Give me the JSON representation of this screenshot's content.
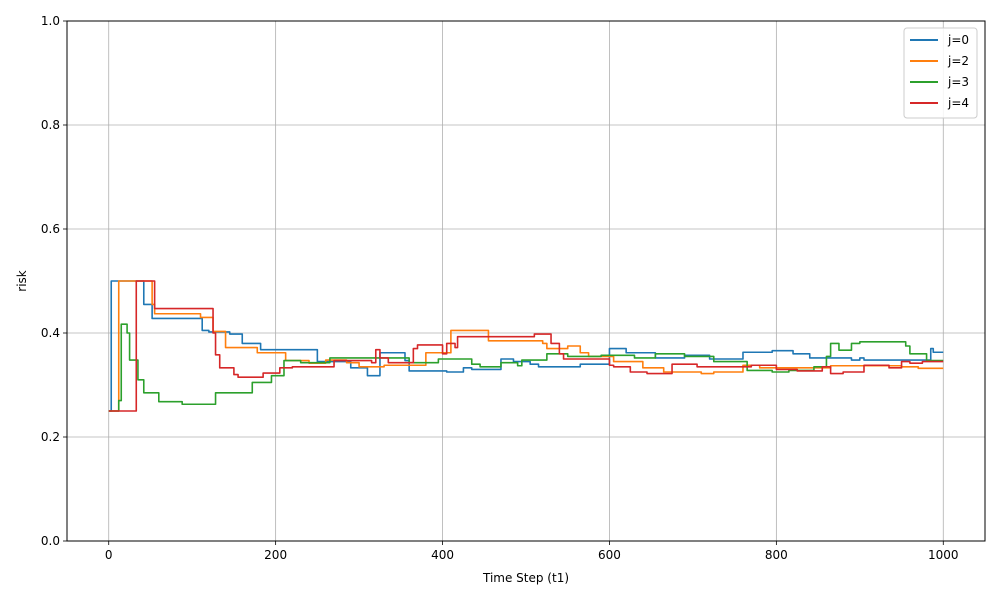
{
  "chart_data": {
    "type": "line",
    "xlabel": "Time Step (t1)",
    "ylabel": "risk",
    "xlim": [
      -50,
      1050
    ],
    "ylim": [
      0.0,
      1.0
    ],
    "xticks": [
      0,
      200,
      400,
      600,
      800,
      1000
    ],
    "yticks": [
      0.0,
      0.2,
      0.4,
      0.6,
      0.8,
      1.0
    ],
    "xtick_labels": [
      "0",
      "200",
      "400",
      "600",
      "800",
      "1000"
    ],
    "ytick_labels": [
      "0.0",
      "0.2",
      "0.4",
      "0.6",
      "0.8",
      "1.0"
    ],
    "grid": true,
    "legend_position": "top-right",
    "series": [
      {
        "name": "j=0",
        "color": "#1f77b4",
        "points": [
          [
            0,
            0.25
          ],
          [
            3,
            0.25
          ],
          [
            3,
            0.5
          ],
          [
            42,
            0.5
          ],
          [
            42,
            0.455
          ],
          [
            52,
            0.455
          ],
          [
            52,
            0.428
          ],
          [
            112,
            0.428
          ],
          [
            112,
            0.405
          ],
          [
            120,
            0.405
          ],
          [
            120,
            0.402
          ],
          [
            145,
            0.402
          ],
          [
            145,
            0.398
          ],
          [
            160,
            0.398
          ],
          [
            160,
            0.38
          ],
          [
            182,
            0.38
          ],
          [
            182,
            0.368
          ],
          [
            250,
            0.368
          ],
          [
            250,
            0.345
          ],
          [
            290,
            0.345
          ],
          [
            290,
            0.333
          ],
          [
            310,
            0.333
          ],
          [
            310,
            0.318
          ],
          [
            325,
            0.318
          ],
          [
            325,
            0.362
          ],
          [
            355,
            0.362
          ],
          [
            355,
            0.347
          ],
          [
            360,
            0.347
          ],
          [
            360,
            0.327
          ],
          [
            405,
            0.327
          ],
          [
            405,
            0.325
          ],
          [
            425,
            0.325
          ],
          [
            425,
            0.333
          ],
          [
            435,
            0.333
          ],
          [
            435,
            0.33
          ],
          [
            470,
            0.33
          ],
          [
            470,
            0.35
          ],
          [
            485,
            0.35
          ],
          [
            485,
            0.345
          ],
          [
            505,
            0.345
          ],
          [
            505,
            0.34
          ],
          [
            515,
            0.34
          ],
          [
            515,
            0.335
          ],
          [
            565,
            0.335
          ],
          [
            565,
            0.34
          ],
          [
            600,
            0.34
          ],
          [
            600,
            0.37
          ],
          [
            620,
            0.37
          ],
          [
            620,
            0.362
          ],
          [
            655,
            0.362
          ],
          [
            655,
            0.352
          ],
          [
            690,
            0.352
          ],
          [
            690,
            0.357
          ],
          [
            720,
            0.357
          ],
          [
            720,
            0.35
          ],
          [
            760,
            0.35
          ],
          [
            760,
            0.363
          ],
          [
            795,
            0.363
          ],
          [
            795,
            0.366
          ],
          [
            820,
            0.366
          ],
          [
            820,
            0.36
          ],
          [
            840,
            0.36
          ],
          [
            840,
            0.352
          ],
          [
            890,
            0.352
          ],
          [
            890,
            0.348
          ],
          [
            900,
            0.348
          ],
          [
            900,
            0.352
          ],
          [
            905,
            0.352
          ],
          [
            905,
            0.348
          ],
          [
            985,
            0.348
          ],
          [
            985,
            0.37
          ],
          [
            988,
            0.37
          ],
          [
            988,
            0.363
          ],
          [
            1000,
            0.363
          ]
        ]
      },
      {
        "name": "j=2",
        "color": "#ff7f0e",
        "points": [
          [
            0,
            0.25
          ],
          [
            12,
            0.25
          ],
          [
            12,
            0.5
          ],
          [
            52,
            0.5
          ],
          [
            52,
            0.455
          ],
          [
            55,
            0.455
          ],
          [
            55,
            0.437
          ],
          [
            110,
            0.437
          ],
          [
            110,
            0.43
          ],
          [
            125,
            0.43
          ],
          [
            125,
            0.403
          ],
          [
            140,
            0.403
          ],
          [
            140,
            0.372
          ],
          [
            178,
            0.372
          ],
          [
            178,
            0.362
          ],
          [
            212,
            0.362
          ],
          [
            212,
            0.347
          ],
          [
            240,
            0.347
          ],
          [
            240,
            0.342
          ],
          [
            260,
            0.342
          ],
          [
            260,
            0.348
          ],
          [
            285,
            0.348
          ],
          [
            285,
            0.343
          ],
          [
            300,
            0.343
          ],
          [
            300,
            0.335
          ],
          [
            330,
            0.335
          ],
          [
            330,
            0.338
          ],
          [
            380,
            0.338
          ],
          [
            380,
            0.362
          ],
          [
            410,
            0.362
          ],
          [
            410,
            0.405
          ],
          [
            455,
            0.405
          ],
          [
            455,
            0.385
          ],
          [
            520,
            0.385
          ],
          [
            520,
            0.38
          ],
          [
            525,
            0.38
          ],
          [
            525,
            0.37
          ],
          [
            550,
            0.37
          ],
          [
            550,
            0.375
          ],
          [
            565,
            0.375
          ],
          [
            565,
            0.362
          ],
          [
            575,
            0.362
          ],
          [
            575,
            0.355
          ],
          [
            605,
            0.355
          ],
          [
            605,
            0.345
          ],
          [
            640,
            0.345
          ],
          [
            640,
            0.333
          ],
          [
            665,
            0.333
          ],
          [
            665,
            0.325
          ],
          [
            710,
            0.325
          ],
          [
            710,
            0.322
          ],
          [
            725,
            0.322
          ],
          [
            725,
            0.325
          ],
          [
            760,
            0.325
          ],
          [
            760,
            0.338
          ],
          [
            780,
            0.338
          ],
          [
            780,
            0.333
          ],
          [
            865,
            0.333
          ],
          [
            865,
            0.337
          ],
          [
            950,
            0.337
          ],
          [
            950,
            0.335
          ],
          [
            970,
            0.335
          ],
          [
            970,
            0.332
          ],
          [
            1000,
            0.332
          ]
        ]
      },
      {
        "name": "j=3",
        "color": "#2ca02c",
        "points": [
          [
            0,
            0.25
          ],
          [
            12,
            0.25
          ],
          [
            12,
            0.27
          ],
          [
            15,
            0.27
          ],
          [
            15,
            0.417
          ],
          [
            22,
            0.417
          ],
          [
            22,
            0.4
          ],
          [
            25,
            0.4
          ],
          [
            25,
            0.348
          ],
          [
            35,
            0.348
          ],
          [
            35,
            0.31
          ],
          [
            42,
            0.31
          ],
          [
            42,
            0.285
          ],
          [
            60,
            0.285
          ],
          [
            60,
            0.268
          ],
          [
            88,
            0.268
          ],
          [
            88,
            0.263
          ],
          [
            128,
            0.263
          ],
          [
            128,
            0.285
          ],
          [
            172,
            0.285
          ],
          [
            172,
            0.305
          ],
          [
            195,
            0.305
          ],
          [
            195,
            0.318
          ],
          [
            210,
            0.318
          ],
          [
            210,
            0.347
          ],
          [
            230,
            0.347
          ],
          [
            230,
            0.343
          ],
          [
            265,
            0.343
          ],
          [
            265,
            0.352
          ],
          [
            360,
            0.352
          ],
          [
            360,
            0.343
          ],
          [
            395,
            0.343
          ],
          [
            395,
            0.35
          ],
          [
            435,
            0.35
          ],
          [
            435,
            0.34
          ],
          [
            445,
            0.34
          ],
          [
            445,
            0.335
          ],
          [
            470,
            0.335
          ],
          [
            470,
            0.343
          ],
          [
            490,
            0.343
          ],
          [
            490,
            0.337
          ],
          [
            495,
            0.337
          ],
          [
            495,
            0.348
          ],
          [
            525,
            0.348
          ],
          [
            525,
            0.36
          ],
          [
            550,
            0.36
          ],
          [
            550,
            0.355
          ],
          [
            590,
            0.355
          ],
          [
            590,
            0.357
          ],
          [
            630,
            0.357
          ],
          [
            630,
            0.352
          ],
          [
            655,
            0.352
          ],
          [
            655,
            0.36
          ],
          [
            690,
            0.36
          ],
          [
            690,
            0.355
          ],
          [
            725,
            0.355
          ],
          [
            725,
            0.345
          ],
          [
            765,
            0.345
          ],
          [
            765,
            0.328
          ],
          [
            795,
            0.328
          ],
          [
            795,
            0.325
          ],
          [
            815,
            0.325
          ],
          [
            815,
            0.328
          ],
          [
            845,
            0.328
          ],
          [
            845,
            0.335
          ],
          [
            860,
            0.335
          ],
          [
            860,
            0.355
          ],
          [
            865,
            0.355
          ],
          [
            865,
            0.38
          ],
          [
            875,
            0.38
          ],
          [
            875,
            0.367
          ],
          [
            890,
            0.367
          ],
          [
            890,
            0.38
          ],
          [
            900,
            0.38
          ],
          [
            900,
            0.383
          ],
          [
            955,
            0.383
          ],
          [
            955,
            0.375
          ],
          [
            960,
            0.375
          ],
          [
            960,
            0.36
          ],
          [
            980,
            0.36
          ],
          [
            980,
            0.347
          ],
          [
            1000,
            0.347
          ]
        ]
      },
      {
        "name": "j=4",
        "color": "#d62728",
        "points": [
          [
            0,
            0.25
          ],
          [
            33,
            0.25
          ],
          [
            33,
            0.5
          ],
          [
            55,
            0.5
          ],
          [
            55,
            0.447
          ],
          [
            125,
            0.447
          ],
          [
            125,
            0.4
          ],
          [
            128,
            0.4
          ],
          [
            128,
            0.358
          ],
          [
            133,
            0.358
          ],
          [
            133,
            0.333
          ],
          [
            150,
            0.333
          ],
          [
            150,
            0.32
          ],
          [
            155,
            0.32
          ],
          [
            155,
            0.315
          ],
          [
            185,
            0.315
          ],
          [
            185,
            0.323
          ],
          [
            205,
            0.323
          ],
          [
            205,
            0.333
          ],
          [
            220,
            0.333
          ],
          [
            220,
            0.335
          ],
          [
            270,
            0.335
          ],
          [
            270,
            0.347
          ],
          [
            315,
            0.347
          ],
          [
            315,
            0.343
          ],
          [
            320,
            0.343
          ],
          [
            320,
            0.368
          ],
          [
            325,
            0.368
          ],
          [
            325,
            0.352
          ],
          [
            335,
            0.352
          ],
          [
            335,
            0.343
          ],
          [
            365,
            0.343
          ],
          [
            365,
            0.37
          ],
          [
            370,
            0.37
          ],
          [
            370,
            0.377
          ],
          [
            400,
            0.377
          ],
          [
            400,
            0.36
          ],
          [
            405,
            0.36
          ],
          [
            405,
            0.38
          ],
          [
            415,
            0.38
          ],
          [
            415,
            0.372
          ],
          [
            418,
            0.372
          ],
          [
            418,
            0.393
          ],
          [
            510,
            0.393
          ],
          [
            510,
            0.398
          ],
          [
            530,
            0.398
          ],
          [
            530,
            0.38
          ],
          [
            540,
            0.38
          ],
          [
            540,
            0.36
          ],
          [
            545,
            0.36
          ],
          [
            545,
            0.35
          ],
          [
            600,
            0.35
          ],
          [
            600,
            0.338
          ],
          [
            605,
            0.338
          ],
          [
            605,
            0.335
          ],
          [
            625,
            0.335
          ],
          [
            625,
            0.325
          ],
          [
            645,
            0.325
          ],
          [
            645,
            0.322
          ],
          [
            675,
            0.322
          ],
          [
            675,
            0.34
          ],
          [
            705,
            0.34
          ],
          [
            705,
            0.335
          ],
          [
            770,
            0.335
          ],
          [
            770,
            0.338
          ],
          [
            800,
            0.338
          ],
          [
            800,
            0.33
          ],
          [
            825,
            0.33
          ],
          [
            825,
            0.327
          ],
          [
            855,
            0.327
          ],
          [
            855,
            0.335
          ],
          [
            865,
            0.335
          ],
          [
            865,
            0.322
          ],
          [
            880,
            0.322
          ],
          [
            880,
            0.325
          ],
          [
            905,
            0.325
          ],
          [
            905,
            0.338
          ],
          [
            935,
            0.338
          ],
          [
            935,
            0.333
          ],
          [
            950,
            0.333
          ],
          [
            950,
            0.345
          ],
          [
            960,
            0.345
          ],
          [
            960,
            0.342
          ],
          [
            975,
            0.342
          ],
          [
            975,
            0.345
          ],
          [
            1000,
            0.345
          ]
        ]
      }
    ]
  }
}
